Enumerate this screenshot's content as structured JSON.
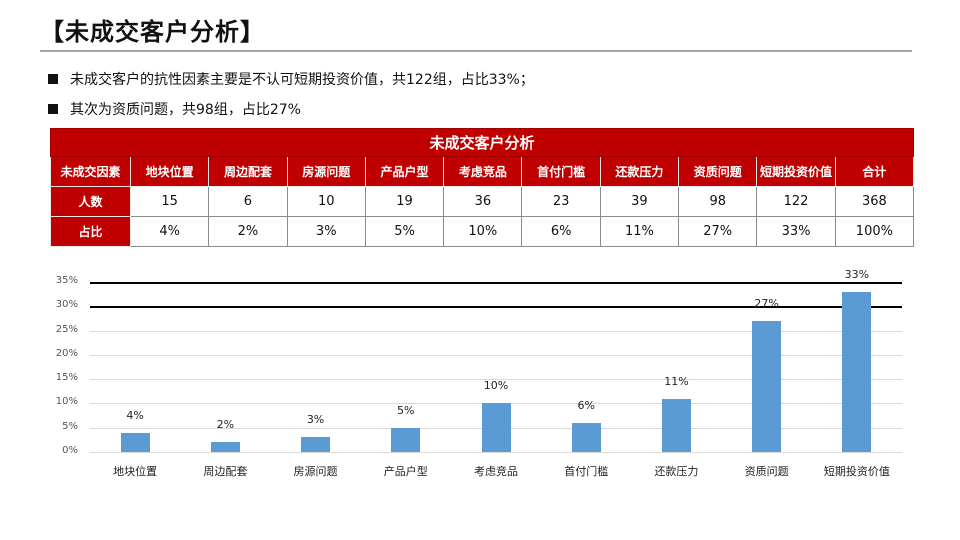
{
  "page": {
    "title": "【未成交客户分析】",
    "bullets": [
      "未成交客户的抗性因素主要是不认可短期投资价值，共122组，占比33%；",
      "其次为资质问题，共98组，占比27%"
    ]
  },
  "table": {
    "caption": "未成交客户分析",
    "header_label": "未成交因素",
    "columns": [
      "地块位置",
      "周边配套",
      "房源问题",
      "产品户型",
      "考虑竞品",
      "首付门槛",
      "还款压力",
      "资质问题",
      "短期投资价值",
      "合计"
    ],
    "rows": [
      {
        "label": "人数",
        "values": [
          "15",
          "6",
          "10",
          "19",
          "36",
          "23",
          "39",
          "98",
          "122",
          "368"
        ]
      },
      {
        "label": "占比",
        "values": [
          "4%",
          "2%",
          "3%",
          "5%",
          "10%",
          "6%",
          "11%",
          "27%",
          "33%",
          "100%"
        ]
      }
    ]
  },
  "chart_data": {
    "type": "bar",
    "title": "",
    "categories": [
      "地块位置",
      "周边配套",
      "房源问题",
      "产品户型",
      "考虑竞品",
      "首付门槛",
      "还款压力",
      "资质问题",
      "短期投资价值"
    ],
    "values": [
      4,
      2,
      3,
      5,
      10,
      6,
      11,
      27,
      33
    ],
    "data_labels": [
      "4%",
      "2%",
      "3%",
      "5%",
      "10%",
      "6%",
      "11%",
      "27%",
      "33%"
    ],
    "xlabel": "",
    "ylabel": "",
    "ylim": [
      0,
      35
    ],
    "yticks": [
      "0%",
      "5%",
      "10%",
      "15%",
      "20%",
      "25%",
      "30%",
      "35%"
    ],
    "grid": true,
    "highlight_lines": [
      "30%",
      "35%"
    ],
    "bar_color": "#5b9bd5",
    "legend": null
  },
  "colors": {
    "table_header": "#c00000",
    "bar": "#5b9bd5"
  }
}
